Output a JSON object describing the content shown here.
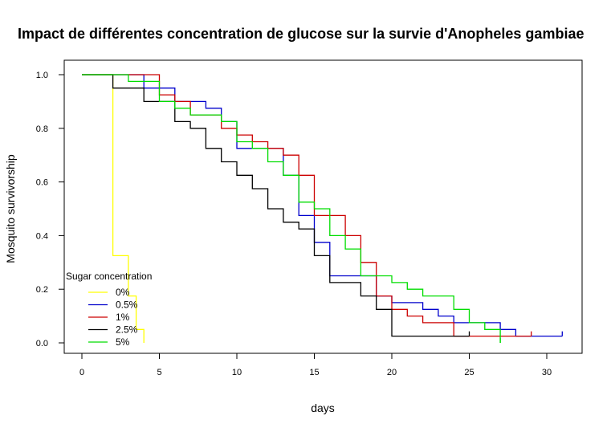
{
  "chart_data": {
    "type": "line",
    "title": "Impact de différentes concentration de glucose sur la survie d'Anopheles gambiae",
    "xlabel": "days",
    "ylabel": "Mosquito survivorship",
    "xlim": [
      0,
      31
    ],
    "ylim": [
      0,
      1
    ],
    "x_ticks": [
      0,
      5,
      10,
      15,
      20,
      25,
      30
    ],
    "y_ticks": [
      0.0,
      0.2,
      0.4,
      0.6,
      0.8,
      1.0
    ],
    "x_tick_labels": [
      "0",
      "5",
      "10",
      "15",
      "20",
      "25",
      "30"
    ],
    "y_tick_labels": [
      "0.0",
      "0.2",
      "0.4",
      "0.6",
      "0.8",
      "1.0"
    ],
    "grid": false,
    "legend": {
      "title": "Sugar concentration",
      "placement": "bottom-left"
    },
    "series": [
      {
        "name": "0%",
        "color": "#ffff00",
        "points": [
          [
            0,
            1.0
          ],
          [
            2,
            0.325
          ],
          [
            3,
            0.175
          ],
          [
            3.5,
            0.05
          ],
          [
            4,
            0.0
          ]
        ]
      },
      {
        "name": "0.5%",
        "color": "#0000cc",
        "points": [
          [
            0,
            1.0
          ],
          [
            4,
            0.95
          ],
          [
            6,
            0.9
          ],
          [
            8,
            0.875
          ],
          [
            9,
            0.825
          ],
          [
            10,
            0.725
          ],
          [
            12,
            0.725
          ],
          [
            13,
            0.625
          ],
          [
            14,
            0.475
          ],
          [
            15,
            0.375
          ],
          [
            16,
            0.25
          ],
          [
            19,
            0.175
          ],
          [
            20,
            0.15
          ],
          [
            22,
            0.125
          ],
          [
            23,
            0.1
          ],
          [
            24,
            0.075
          ],
          [
            27,
            0.05
          ],
          [
            28,
            0.025
          ],
          [
            31,
            0.025
          ]
        ],
        "end": 31
      },
      {
        "name": "1%",
        "color": "#cc0000",
        "points": [
          [
            0,
            1.0
          ],
          [
            5,
            0.925
          ],
          [
            6,
            0.9
          ],
          [
            7,
            0.85
          ],
          [
            9,
            0.8
          ],
          [
            10,
            0.775
          ],
          [
            11,
            0.75
          ],
          [
            12,
            0.725
          ],
          [
            13,
            0.7
          ],
          [
            14,
            0.625
          ],
          [
            15,
            0.475
          ],
          [
            17,
            0.4
          ],
          [
            18,
            0.3
          ],
          [
            19,
            0.175
          ],
          [
            20,
            0.125
          ],
          [
            21,
            0.1
          ],
          [
            22,
            0.075
          ],
          [
            24,
            0.025
          ],
          [
            29,
            0.025
          ]
        ],
        "end": 29
      },
      {
        "name": "2.5%",
        "color": "#000000",
        "points": [
          [
            0,
            1.0
          ],
          [
            2,
            0.95
          ],
          [
            4,
            0.9
          ],
          [
            6,
            0.825
          ],
          [
            7,
            0.8
          ],
          [
            8,
            0.725
          ],
          [
            9,
            0.675
          ],
          [
            10,
            0.625
          ],
          [
            11,
            0.575
          ],
          [
            12,
            0.5
          ],
          [
            13,
            0.45
          ],
          [
            14,
            0.425
          ],
          [
            15,
            0.325
          ],
          [
            16,
            0.225
          ],
          [
            18,
            0.175
          ],
          [
            19,
            0.125
          ],
          [
            20,
            0.025
          ],
          [
            25,
            0.025
          ]
        ],
        "end": 25
      },
      {
        "name": "5%",
        "color": "#00dd00",
        "points": [
          [
            0,
            1.0
          ],
          [
            3,
            0.975
          ],
          [
            5,
            0.9
          ],
          [
            6,
            0.875
          ],
          [
            7,
            0.85
          ],
          [
            9,
            0.825
          ],
          [
            10,
            0.75
          ],
          [
            11,
            0.725
          ],
          [
            12,
            0.675
          ],
          [
            13,
            0.625
          ],
          [
            14,
            0.525
          ],
          [
            15,
            0.5
          ],
          [
            16,
            0.4
          ],
          [
            17,
            0.35
          ],
          [
            18,
            0.25
          ],
          [
            20,
            0.225
          ],
          [
            21,
            0.2
          ],
          [
            22,
            0.175
          ],
          [
            24,
            0.125
          ],
          [
            25,
            0.075
          ],
          [
            26,
            0.05
          ],
          [
            27,
            0.0
          ]
        ],
        "end": 27
      }
    ]
  }
}
